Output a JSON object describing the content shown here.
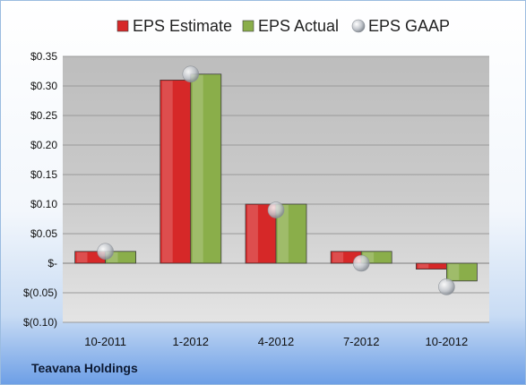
{
  "chart_data": {
    "type": "bar",
    "categories": [
      "10-2011",
      "1-2012",
      "4-2012",
      "7-2012",
      "10-2012"
    ],
    "series": [
      {
        "name": "EPS Estimate",
        "kind": "bar",
        "color": "#d62828",
        "values": [
          0.02,
          0.31,
          0.1,
          0.02,
          -0.01
        ]
      },
      {
        "name": "EPS Actual",
        "kind": "bar",
        "color": "#8aae4a",
        "values": [
          0.02,
          0.32,
          0.1,
          0.02,
          -0.03
        ]
      },
      {
        "name": "EPS GAAP",
        "kind": "marker",
        "color": "#b8bcc4",
        "values": [
          0.02,
          0.32,
          0.09,
          0.0,
          -0.04
        ]
      }
    ],
    "yticks": [
      0.35,
      0.3,
      0.25,
      0.2,
      0.15,
      0.1,
      0.05,
      0,
      -0.05,
      -0.1
    ],
    "ytick_labels": [
      "$0.35",
      "$0.30",
      "$0.25",
      "$0.20",
      "$0.15",
      "$0.10",
      "$0.05",
      "$-",
      "$(0.05)",
      "$(0.10)"
    ],
    "ylim": [
      -0.1,
      0.35
    ],
    "grid": true,
    "legend_position": "top"
  },
  "footer": {
    "company": "Teavana Holdings"
  }
}
